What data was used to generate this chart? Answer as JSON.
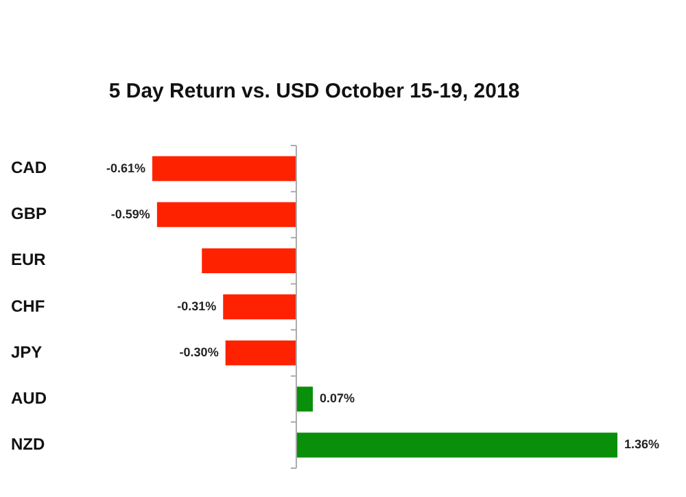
{
  "chart_data": {
    "type": "bar",
    "orientation": "horizontal",
    "title": "5 Day Return vs. USD October 15-19, 2018",
    "categories": [
      "CAD",
      "GBP",
      "EUR",
      "CHF",
      "JPY",
      "AUD",
      "NZD"
    ],
    "values": [
      -0.61,
      -0.59,
      -0.4,
      -0.31,
      -0.3,
      0.07,
      1.36
    ],
    "colors": [
      "#ff2200",
      "#ff2200",
      "#ff2200",
      "#ff2200",
      "#ff2200",
      "#0a8f0a",
      "#0a8f0a"
    ],
    "value_labels": [
      "-0.61%",
      "-0.59%",
      null,
      "-0.31%",
      "-0.30%",
      "0.07%",
      "1.36%"
    ],
    "relative": false,
    "grid": false,
    "legend": false
  }
}
